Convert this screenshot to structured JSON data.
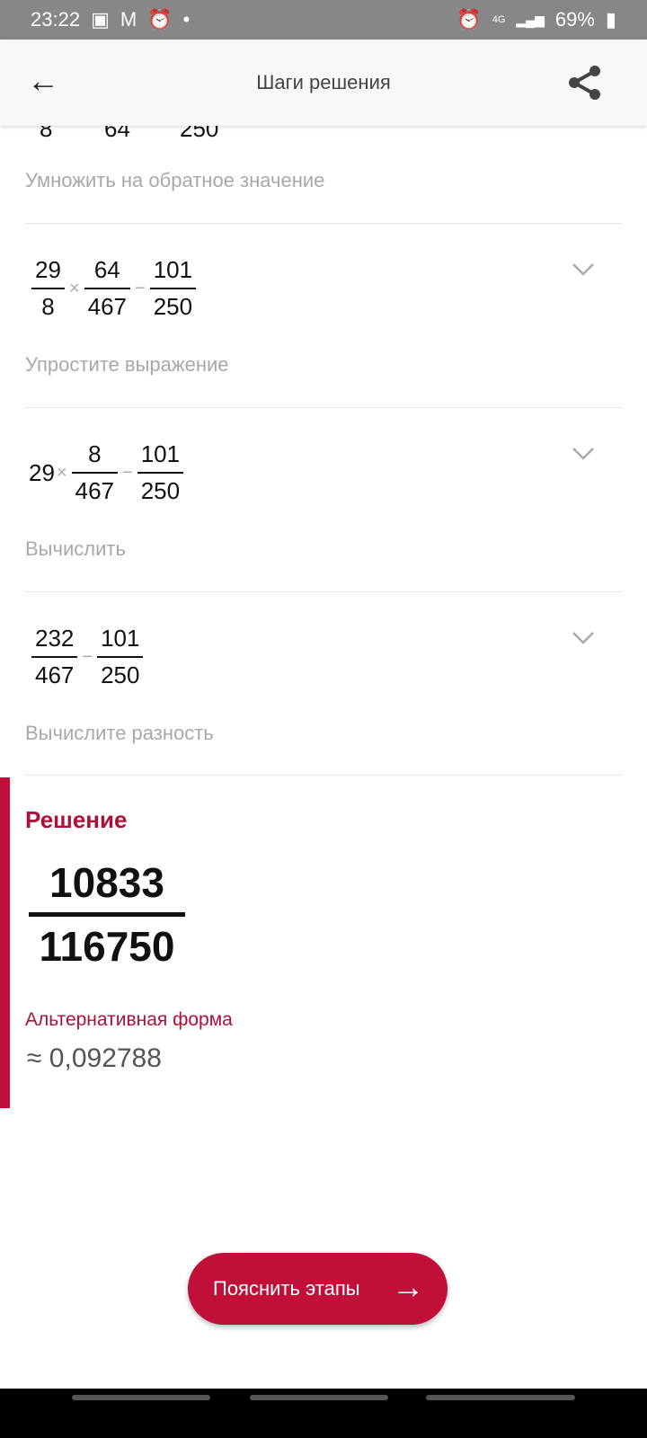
{
  "status_bar": {
    "time": "23:22",
    "network": "4G",
    "battery": "69%"
  },
  "header": {
    "title": "Шаги решения"
  },
  "steps": [
    {
      "partial_denominators": [
        "8",
        "64",
        "250"
      ],
      "caption": "Умножить на обратное значение"
    },
    {
      "terms": [
        {
          "n": "29",
          "d": "8"
        },
        {
          "n": "64",
          "d": "467"
        },
        {
          "n": "101",
          "d": "250"
        }
      ],
      "ops": [
        "×",
        "−"
      ],
      "caption": "Упростите выражение"
    },
    {
      "lead": "29",
      "terms": [
        {
          "n": "8",
          "d": "467"
        },
        {
          "n": "101",
          "d": "250"
        }
      ],
      "ops": [
        "×",
        "−"
      ],
      "caption": "Вычислить"
    },
    {
      "terms": [
        {
          "n": "232",
          "d": "467"
        },
        {
          "n": "101",
          "d": "250"
        }
      ],
      "ops": [
        "−"
      ],
      "caption": "Вычислите разность"
    }
  ],
  "solution": {
    "heading": "Решение",
    "numerator": "10833",
    "denominator": "116750",
    "alt_label": "Альтернативная форма",
    "approx": "≈ 0,092788"
  },
  "explain_button": {
    "label": "Пояснить этапы",
    "icon": "arrow-right-icon"
  },
  "colors": {
    "accent": "#c0103a",
    "status_bar": "#878787"
  }
}
